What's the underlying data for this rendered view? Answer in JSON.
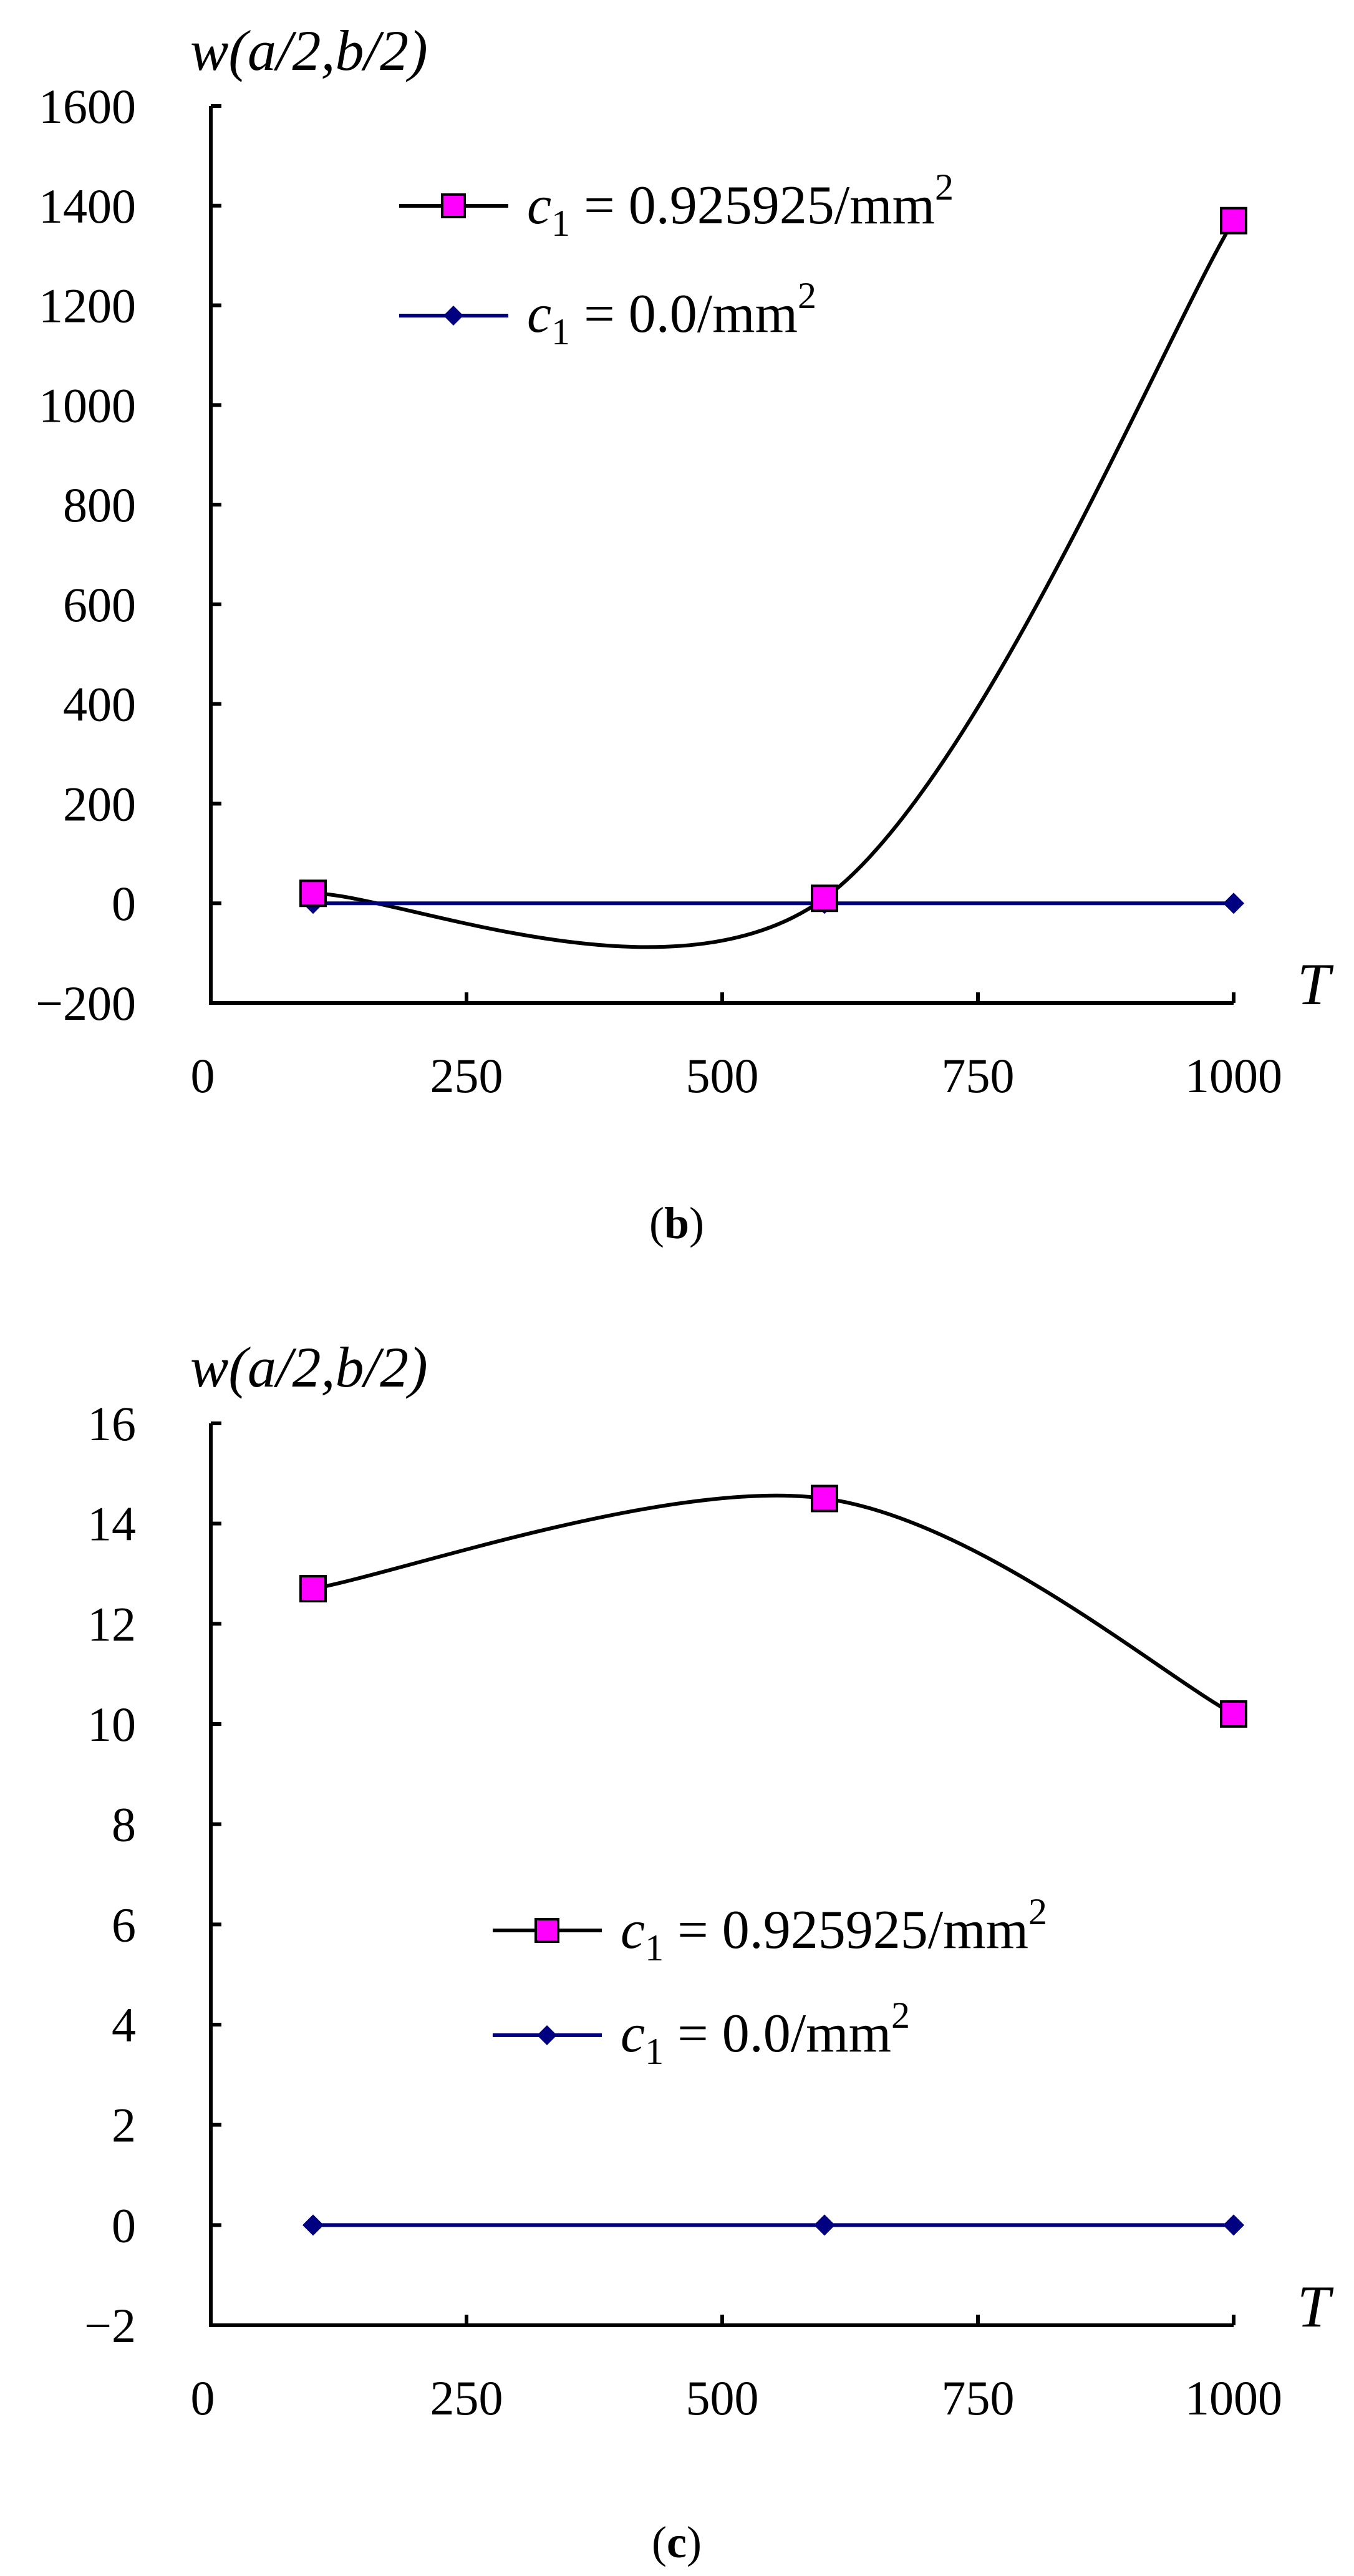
{
  "charts": [
    {
      "caption_letter": "b",
      "ylabel": "w(a/2,b/2)",
      "xlabel": "T",
      "ylim": [
        -200,
        1600
      ],
      "y_ticks": [
        "−200",
        "0",
        "200",
        "400",
        "600",
        "800",
        "1000",
        "1200",
        "1400",
        "1600"
      ],
      "x_ticks": [
        "0",
        "250",
        "500",
        "750",
        "1000"
      ],
      "legend": [
        {
          "var": "c",
          "sub": "1",
          "text": " = 0.925925/mm",
          "sup": "2"
        },
        {
          "var": "c",
          "sub": "1",
          "text": " = 0.0/mm",
          "sup": "2"
        }
      ]
    },
    {
      "caption_letter": "c",
      "ylabel": "w(a/2,b/2)",
      "xlabel": "T",
      "ylim": [
        -2,
        16
      ],
      "y_ticks": [
        "−2",
        "0",
        "2",
        "4",
        "6",
        "8",
        "10",
        "12",
        "14",
        "16"
      ],
      "x_ticks": [
        "0",
        "250",
        "500",
        "750",
        "1000"
      ],
      "legend": [
        {
          "var": "c",
          "sub": "1",
          "text": " = 0.925925/mm",
          "sup": "2"
        },
        {
          "var": "c",
          "sub": "1",
          "text": " = 0.0/mm",
          "sup": "2"
        }
      ]
    }
  ],
  "chart_data": [
    {
      "type": "line",
      "xlabel": "T",
      "ylabel": "w(a/2,b/2)",
      "xlim": [
        0,
        1000
      ],
      "ylim": [
        -200,
        1600
      ],
      "x_ticks": [
        0,
        250,
        500,
        750,
        1000
      ],
      "y_ticks": [
        -200,
        0,
        200,
        400,
        600,
        800,
        1000,
        1200,
        1400,
        1600
      ],
      "legend_position": "top-left",
      "grid": false,
      "series": [
        {
          "name": "c1 = 0.925925/mm2",
          "x": [
            100,
            600,
            1000
          ],
          "y": [
            20,
            10,
            1370
          ],
          "marker": "square",
          "marker_color": "#ff00ff",
          "line_color": "#000000",
          "smooth": true
        },
        {
          "name": "c1 = 0.0/mm2",
          "x": [
            100,
            600,
            1000
          ],
          "y": [
            0,
            0,
            0
          ],
          "marker": "diamond",
          "marker_color": "#000080",
          "line_color": "#000080",
          "smooth": false
        }
      ]
    },
    {
      "type": "line",
      "xlabel": "T",
      "ylabel": "w(a/2,b/2)",
      "xlim": [
        0,
        1000
      ],
      "ylim": [
        -2,
        16
      ],
      "x_ticks": [
        0,
        250,
        500,
        750,
        1000
      ],
      "y_ticks": [
        -2,
        0,
        2,
        4,
        6,
        8,
        10,
        12,
        14,
        16
      ],
      "legend_position": "center",
      "grid": false,
      "series": [
        {
          "name": "c1 = 0.925925/mm2",
          "x": [
            100,
            600,
            1000
          ],
          "y": [
            12.7,
            14.5,
            10.2
          ],
          "marker": "square",
          "marker_color": "#ff00ff",
          "line_color": "#000000",
          "smooth": true
        },
        {
          "name": "c1 = 0.0/mm2",
          "x": [
            100,
            600,
            1000
          ],
          "y": [
            0,
            0,
            0
          ],
          "marker": "diamond",
          "marker_color": "#000080",
          "line_color": "#000080",
          "smooth": false
        }
      ]
    }
  ]
}
